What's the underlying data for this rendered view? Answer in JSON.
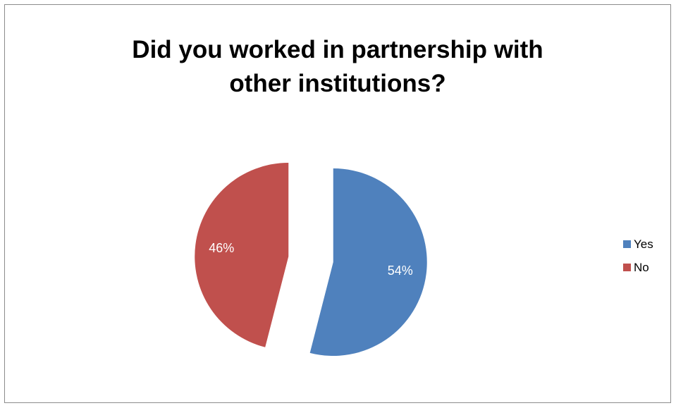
{
  "chart_data": {
    "type": "pie",
    "title": "Did you worked in partnership with other institutions?",
    "title_lines": [
      "Did you worked in partnership with",
      "other institutions?"
    ],
    "slices": [
      {
        "label": "Yes",
        "value": 54,
        "data_label": "54%",
        "color": "#4F81BD"
      },
      {
        "label": "No",
        "value": 46,
        "data_label": "46%",
        "color": "#C0504D"
      }
    ],
    "legend": {
      "position": "right",
      "entries": [
        "Yes",
        "No"
      ]
    },
    "exploded": true
  }
}
